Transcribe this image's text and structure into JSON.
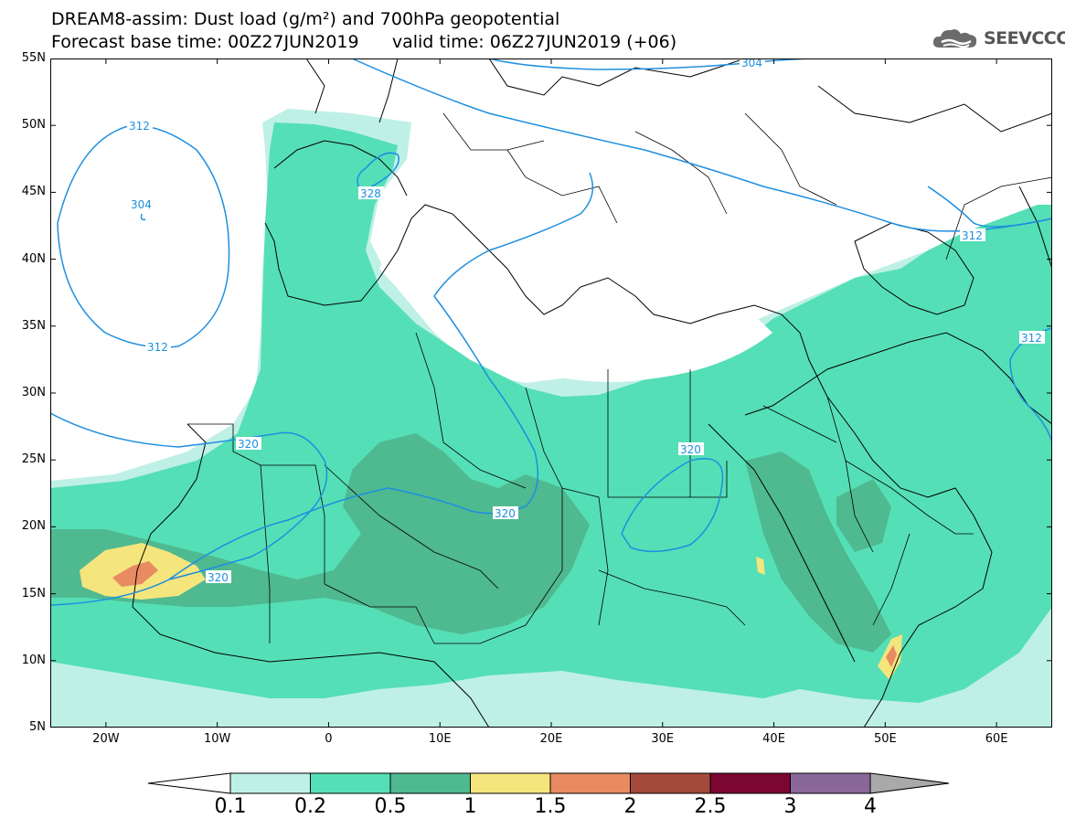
{
  "title": {
    "line1": "DREAM8-assim: Dust load (g/m²) and 700hPa geopotential",
    "line2": "Forecast base time: 00Z27JUN2019      valid time: 06Z27JUN2019 (+06)"
  },
  "brand": {
    "name": "SEEVCCC",
    "icon": "cloud-icon"
  },
  "axes": {
    "lat_labels": [
      "55N",
      "50N",
      "45N",
      "40N",
      "35N",
      "30N",
      "25N",
      "20N",
      "15N",
      "10N",
      "5N"
    ],
    "lon_labels": [
      "20W",
      "10W",
      "0",
      "10E",
      "20E",
      "30E",
      "40E",
      "50E",
      "60E"
    ],
    "lat_range": [
      5,
      55
    ],
    "lon_range": [
      -25,
      65
    ]
  },
  "legend": {
    "labels": [
      "0.1",
      "0.2",
      "0.5",
      "1",
      "1.5",
      "2",
      "2.5",
      "3",
      "4"
    ],
    "colors": [
      "#bff0e6",
      "#55dfb6",
      "#4fb990",
      "#f4e57d",
      "#e88a62",
      "#a44a3c",
      "#7a0631",
      "#8a6799",
      "#a9a9a9"
    ],
    "under_color": "#ffffff",
    "over_color": "#a9a9a9"
  },
  "contours": {
    "labels": [
      "304",
      "312",
      "304",
      "312",
      "328",
      "312",
      "312",
      "320",
      "320",
      "320",
      "320"
    ],
    "color": "#1e8fe0"
  }
}
